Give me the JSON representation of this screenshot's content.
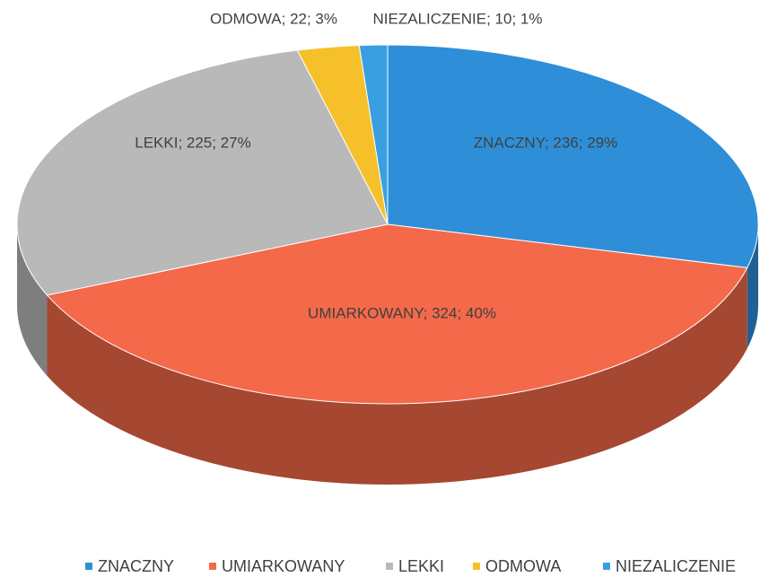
{
  "chart_data": {
    "type": "pie",
    "categories": [
      "ZNACZNY",
      "UMIARKOWANY",
      "LEKKI",
      "ODMOWA",
      "NIEZALICZENIE"
    ],
    "values": [
      236,
      324,
      225,
      22,
      10
    ],
    "value_labels": [
      "ZNACZNY; 236; 29%",
      "UMIARKOWANY; 324; 40%",
      "LEKKI; 225; 27%",
      "ODMOWA; 22; 3%",
      "NIEZALICZENIE; 10; 1%"
    ],
    "colors": [
      "#2e8fd8",
      "#f4694a",
      "#b9b9b9",
      "#f5c02a",
      "#3a9fe0"
    ],
    "legend": "bottom"
  }
}
